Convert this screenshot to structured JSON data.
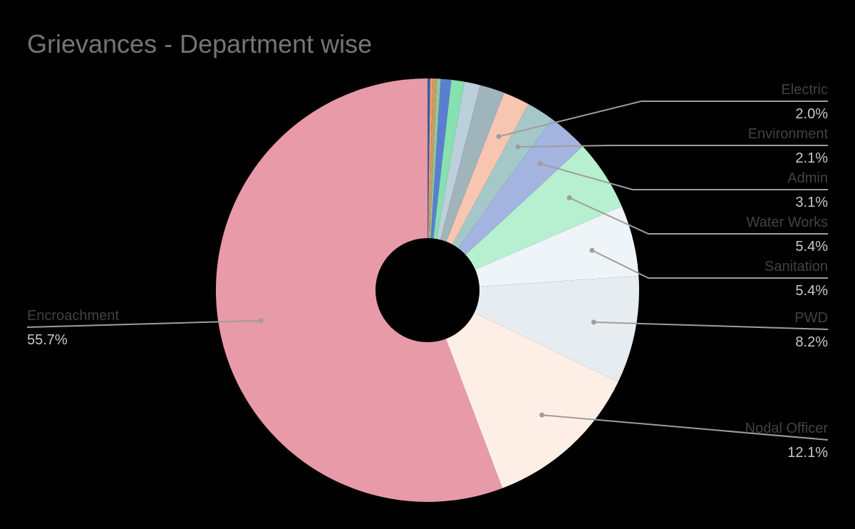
{
  "chart_data": {
    "type": "pie",
    "title": "Grievances - Department wise",
    "donut": true,
    "start_angle_deg": 0,
    "direction": "clockwise",
    "slices": [
      {
        "name": "",
        "value": 0.2,
        "color": "#3a5ba8"
      },
      {
        "name": "",
        "value": 0.2,
        "color": "#e8a070"
      },
      {
        "name": "",
        "value": 0.3,
        "color": "#d09a60"
      },
      {
        "name": "",
        "value": 0.3,
        "color": "#90c8a0"
      },
      {
        "name": "",
        "value": 0.8,
        "color": "#5b7fd0"
      },
      {
        "name": "",
        "value": 1.0,
        "color": "#86e0b0"
      },
      {
        "name": "",
        "value": 1.2,
        "color": "#bcd0dc"
      },
      {
        "name": "",
        "value": 1.9,
        "color": "#a0b4bc"
      },
      {
        "name": "Electric",
        "value": 2.0,
        "label": "2.0%",
        "color": "#f8c6b0"
      },
      {
        "name": "Environment",
        "value": 2.1,
        "label": "2.1%",
        "color": "#a4c8c8"
      },
      {
        "name": "Admin",
        "value": 3.1,
        "label": "3.1%",
        "color": "#a4b4e0"
      },
      {
        "name": "Water Works",
        "value": 5.4,
        "label": "5.4%",
        "color": "#b6f0d0"
      },
      {
        "name": "Sanitation",
        "value": 5.4,
        "label": "5.4%",
        "color": "#eef4f8"
      },
      {
        "name": "PWD",
        "value": 8.2,
        "label": "8.2%",
        "color": "#e6ecf0"
      },
      {
        "name": "Nodal Officer",
        "value": 12.1,
        "label": "12.1%",
        "color": "#fdefe6"
      },
      {
        "name": "Encroachment",
        "value": 55.7,
        "label": "55.7%",
        "color": "#e89aa8"
      }
    ]
  }
}
